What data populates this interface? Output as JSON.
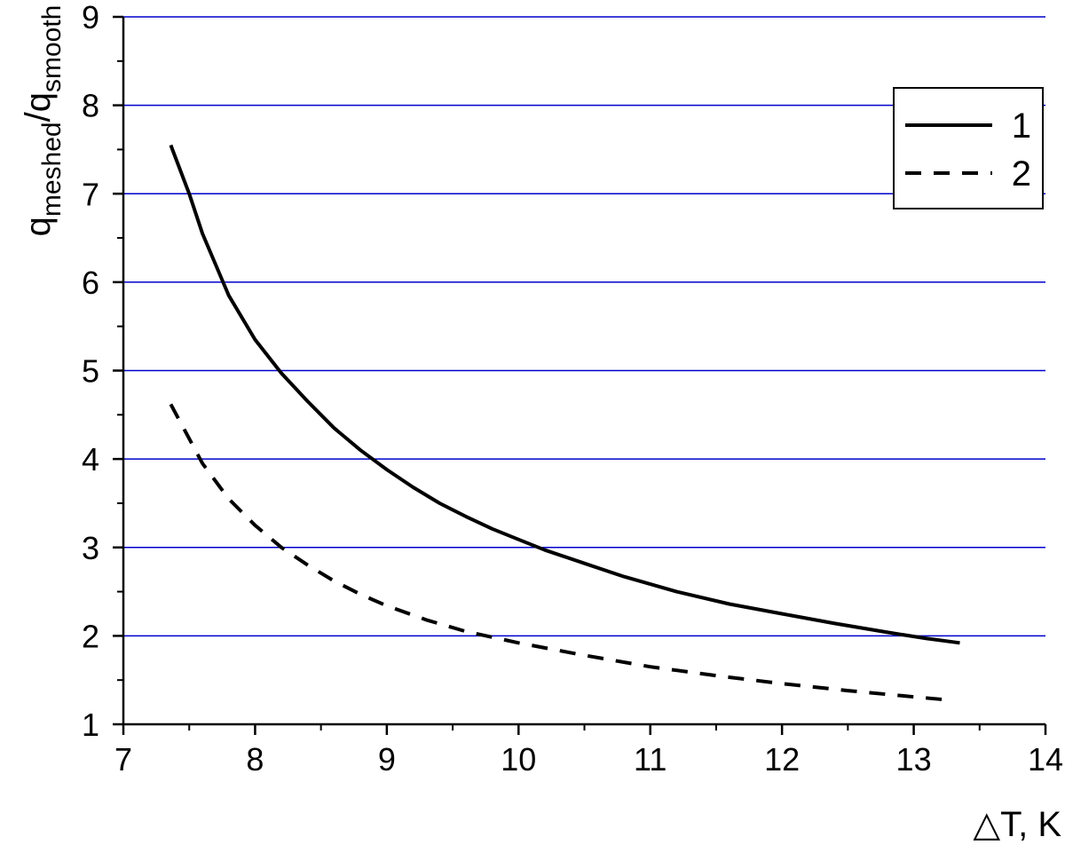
{
  "chart_data": {
    "type": "line",
    "xlabel": "△T, K",
    "ylabel": {
      "base1": "q",
      "sub1": "meshed",
      "slash": "/",
      "base2": "q",
      "sub2": "smooth"
    },
    "xlim": [
      7,
      14
    ],
    "ylim": [
      1,
      9
    ],
    "x_ticks": [
      "7",
      "8",
      "9",
      "10",
      "11",
      "12",
      "13",
      "14"
    ],
    "y_ticks": [
      "1",
      "2",
      "3",
      "4",
      "5",
      "6",
      "7",
      "8",
      "9"
    ],
    "grid": "horizontal",
    "grid_color": "#0000cc",
    "legend_position": "top-right",
    "series": [
      {
        "name": "1",
        "style": "solid",
        "color": "#000000",
        "x": [
          7.36,
          7.5,
          7.6,
          7.8,
          8.0,
          8.2,
          8.4,
          8.6,
          8.8,
          9.0,
          9.2,
          9.4,
          9.6,
          9.8,
          10.0,
          10.2,
          10.5,
          10.8,
          11.2,
          11.6,
          12.0,
          12.4,
          12.8,
          13.1,
          13.35
        ],
        "y": [
          7.55,
          7.0,
          6.55,
          5.85,
          5.35,
          4.97,
          4.65,
          4.35,
          4.1,
          3.88,
          3.68,
          3.5,
          3.35,
          3.21,
          3.09,
          2.97,
          2.82,
          2.67,
          2.5,
          2.36,
          2.25,
          2.14,
          2.04,
          1.97,
          1.92
        ]
      },
      {
        "name": "2",
        "style": "dashed",
        "color": "#000000",
        "x": [
          7.36,
          7.6,
          7.8,
          8.0,
          8.2,
          8.4,
          8.6,
          8.8,
          9.0,
          9.3,
          9.6,
          10.0,
          10.5,
          11.0,
          11.5,
          12.0,
          12.5,
          13.0,
          13.3
        ],
        "y": [
          4.62,
          3.95,
          3.55,
          3.25,
          3.0,
          2.8,
          2.62,
          2.47,
          2.34,
          2.18,
          2.05,
          1.92,
          1.78,
          1.65,
          1.55,
          1.46,
          1.38,
          1.31,
          1.27
        ]
      }
    ]
  }
}
